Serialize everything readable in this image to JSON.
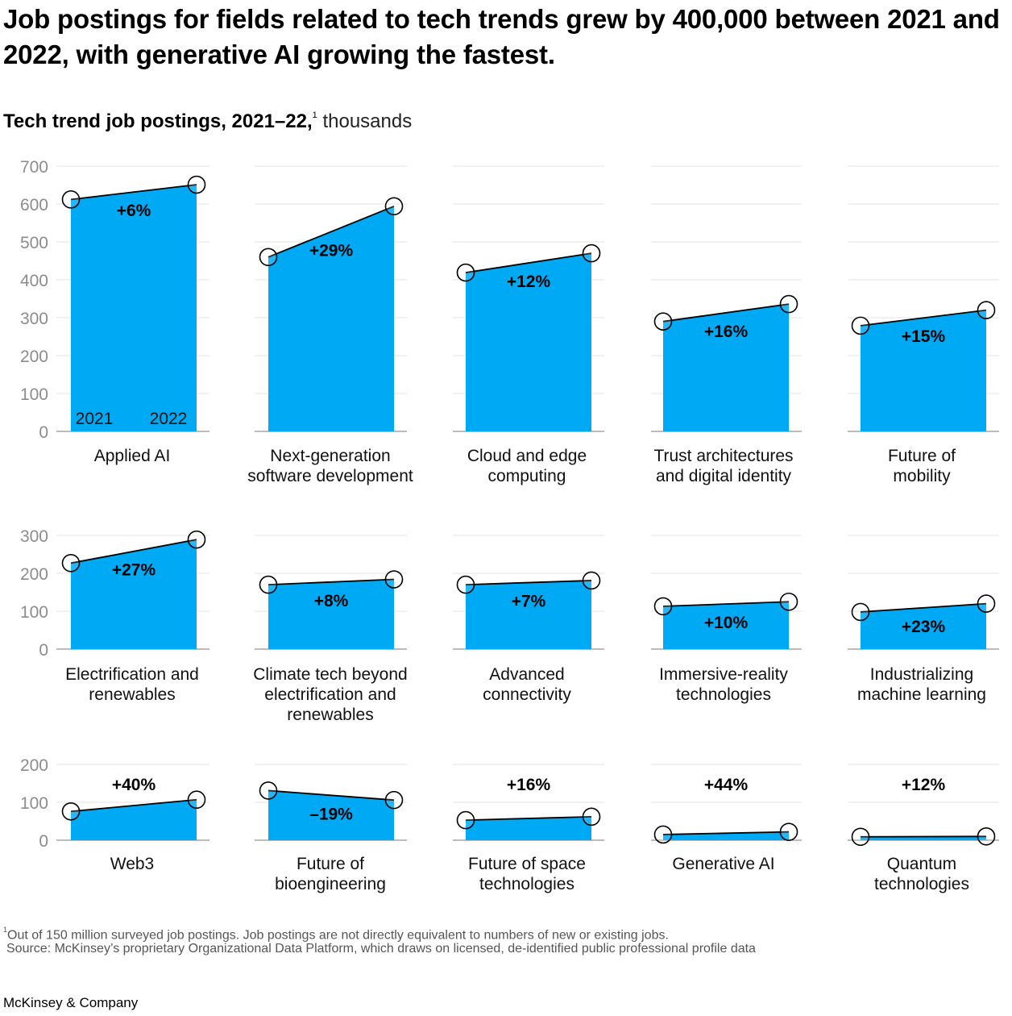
{
  "title": "Job postings for fields related to tech trends grew by 400,000 between 2021 and 2022, with generative AI growing the fastest.",
  "subtitle": {
    "main": "Tech trend job postings, 2021–22,",
    "footnote_mark": "1",
    "unit": "thousands"
  },
  "footnote": {
    "mark": "1",
    "text": "Out of 150 million surveyed job postings. Job postings are not directly equivalent to numbers of new or existing jobs."
  },
  "source": "Source: McKinsey’s proprietary Organizational Data Platform, which draws on licensed, de-identified public professional profile data",
  "brand": "McKinsey & Company",
  "colors": {
    "area": "#00A9F4",
    "line": "#000000",
    "grid": "#e3e3e3",
    "axis_text": "#8c8c8c"
  },
  "chart_data": {
    "type": "area",
    "x": [
      "2021",
      "2022"
    ],
    "year_labels": [
      "2021",
      "2022"
    ],
    "rows": [
      {
        "y_ticks": [
          0,
          100,
          200,
          300,
          400,
          500,
          600,
          700
        ],
        "ylim": [
          0,
          700
        ]
      },
      {
        "y_ticks": [
          0,
          100,
          200,
          300
        ],
        "ylim": [
          0,
          300
        ]
      },
      {
        "y_ticks": [
          0,
          100,
          200
        ],
        "ylim": [
          0,
          200
        ]
      }
    ],
    "panels": [
      {
        "row": 0,
        "label": [
          "Applied AI"
        ],
        "values": [
          612,
          651
        ],
        "change": "+6%"
      },
      {
        "row": 0,
        "label": [
          "Next-generation",
          "software development"
        ],
        "values": [
          460,
          594
        ],
        "change": "+29%"
      },
      {
        "row": 0,
        "label": [
          "Cloud and edge",
          "computing"
        ],
        "values": [
          419,
          470
        ],
        "change": "+12%"
      },
      {
        "row": 0,
        "label": [
          "Trust architectures",
          "and digital identity"
        ],
        "values": [
          290,
          336
        ],
        "change": "+16%"
      },
      {
        "row": 0,
        "label": [
          "Future of",
          "mobility"
        ],
        "values": [
          279,
          320
        ],
        "change": "+15%"
      },
      {
        "row": 1,
        "label": [
          "Electrification and",
          "renewables"
        ],
        "values": [
          227,
          289
        ],
        "change": "+27%"
      },
      {
        "row": 1,
        "label": [
          "Climate tech beyond",
          "electrification and",
          "renewables"
        ],
        "values": [
          170,
          184
        ],
        "change": "+8%"
      },
      {
        "row": 1,
        "label": [
          "Advanced",
          "connectivity"
        ],
        "values": [
          170,
          181
        ],
        "change": "+7%"
      },
      {
        "row": 1,
        "label": [
          "Immersive-reality",
          "technologies"
        ],
        "values": [
          113,
          125
        ],
        "change": "+10%"
      },
      {
        "row": 1,
        "label": [
          "Industrializing",
          "machine learning"
        ],
        "values": [
          98,
          120
        ],
        "change": "+23%"
      },
      {
        "row": 2,
        "label": [
          "Web3"
        ],
        "values": [
          76,
          107
        ],
        "change": "+40%"
      },
      {
        "row": 2,
        "label": [
          "Future of",
          "bioengineering"
        ],
        "values": [
          131,
          106
        ],
        "change": "–19%"
      },
      {
        "row": 2,
        "label": [
          "Future of space",
          "technologies"
        ],
        "values": [
          53,
          62
        ],
        "change": "+16%"
      },
      {
        "row": 2,
        "label": [
          "Generative AI"
        ],
        "values": [
          15,
          22
        ],
        "change": "+44%"
      },
      {
        "row": 2,
        "label": [
          "Quantum",
          "technologies"
        ],
        "values": [
          9,
          10
        ],
        "change": "+12%"
      }
    ]
  }
}
